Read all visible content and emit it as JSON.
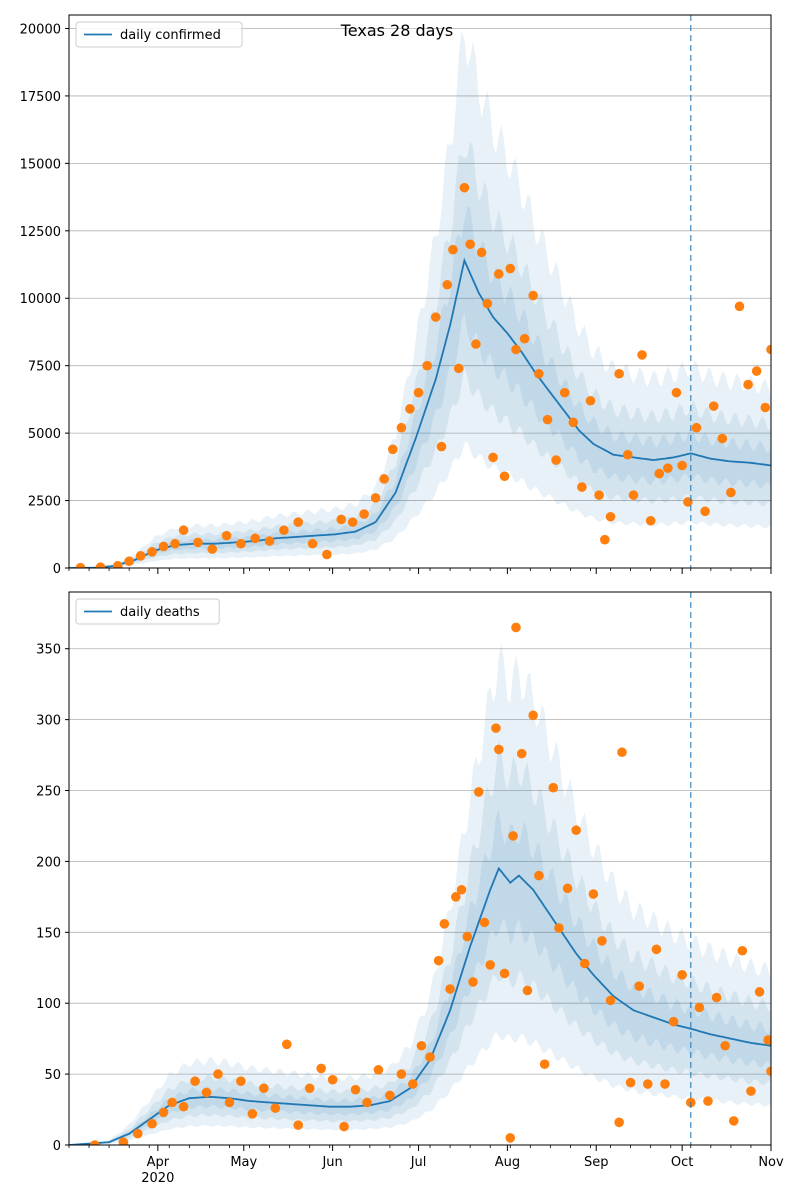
{
  "figure_title": "Texas 28 days",
  "colors": {
    "model_line": "#1f77b4",
    "observed_points": "#ff7f0e",
    "band": "#1f77b4",
    "grid": "#b0b0b0",
    "vline": "#1f77b4"
  },
  "x_axis": {
    "range": [
      "2020-03-01",
      "2020-11-01"
    ],
    "month_labels": [
      {
        "date": "2020-04-01",
        "label": "Apr",
        "sub": "2020"
      },
      {
        "date": "2020-05-01",
        "label": "May",
        "sub": ""
      },
      {
        "date": "2020-06-01",
        "label": "Jun",
        "sub": ""
      },
      {
        "date": "2020-07-01",
        "label": "Jul",
        "sub": ""
      },
      {
        "date": "2020-08-01",
        "label": "Aug",
        "sub": ""
      },
      {
        "date": "2020-09-01",
        "label": "Sep",
        "sub": ""
      },
      {
        "date": "2020-10-01",
        "label": "Oct",
        "sub": ""
      },
      {
        "date": "2020-11-01",
        "label": "Nov",
        "sub": ""
      }
    ],
    "forecast_start": "2020-10-04"
  },
  "chart_data": [
    {
      "type": "line",
      "title": "Texas 28 days",
      "legend": {
        "label": "daily confirmed",
        "position": "top-left"
      },
      "grid": "horizontal",
      "ylim": [
        0,
        20500
      ],
      "yticks": [
        0,
        2500,
        5000,
        7500,
        10000,
        12500,
        15000,
        17500,
        20000
      ],
      "model_median": [
        [
          "2020-03-01",
          0
        ],
        [
          "2020-03-10",
          10
        ],
        [
          "2020-03-17",
          80
        ],
        [
          "2020-03-24",
          300
        ],
        [
          "2020-03-31",
          650
        ],
        [
          "2020-04-07",
          850
        ],
        [
          "2020-04-14",
          900
        ],
        [
          "2020-04-21",
          900
        ],
        [
          "2020-04-28",
          950
        ],
        [
          "2020-05-05",
          1000
        ],
        [
          "2020-05-12",
          1100
        ],
        [
          "2020-05-19",
          1150
        ],
        [
          "2020-05-26",
          1200
        ],
        [
          "2020-06-02",
          1250
        ],
        [
          "2020-06-09",
          1350
        ],
        [
          "2020-06-16",
          1700
        ],
        [
          "2020-06-23",
          2800
        ],
        [
          "2020-06-30",
          4800
        ],
        [
          "2020-07-07",
          7000
        ],
        [
          "2020-07-12",
          9000
        ],
        [
          "2020-07-17",
          11400
        ],
        [
          "2020-07-22",
          10200
        ],
        [
          "2020-07-27",
          9300
        ],
        [
          "2020-08-01",
          8700
        ],
        [
          "2020-08-06",
          8000
        ],
        [
          "2020-08-11",
          7200
        ],
        [
          "2020-08-16",
          6500
        ],
        [
          "2020-08-21",
          5800
        ],
        [
          "2020-08-26",
          5100
        ],
        [
          "2020-08-31",
          4600
        ],
        [
          "2020-09-07",
          4200
        ],
        [
          "2020-09-14",
          4100
        ],
        [
          "2020-09-21",
          4000
        ],
        [
          "2020-09-28",
          4100
        ],
        [
          "2020-10-04",
          4250
        ],
        [
          "2020-10-11",
          4050
        ],
        [
          "2020-10-18",
          3950
        ],
        [
          "2020-10-25",
          3900
        ],
        [
          "2020-11-01",
          3800
        ]
      ],
      "observed": [
        [
          "2020-03-05",
          10
        ],
        [
          "2020-03-12",
          30
        ],
        [
          "2020-03-18",
          80
        ],
        [
          "2020-03-22",
          250
        ],
        [
          "2020-03-26",
          450
        ],
        [
          "2020-03-30",
          600
        ],
        [
          "2020-04-03",
          800
        ],
        [
          "2020-04-07",
          900
        ],
        [
          "2020-04-10",
          1400
        ],
        [
          "2020-04-15",
          950
        ],
        [
          "2020-04-20",
          700
        ],
        [
          "2020-04-25",
          1200
        ],
        [
          "2020-04-30",
          900
        ],
        [
          "2020-05-05",
          1100
        ],
        [
          "2020-05-10",
          1000
        ],
        [
          "2020-05-15",
          1400
        ],
        [
          "2020-05-20",
          1700
        ],
        [
          "2020-05-25",
          900
        ],
        [
          "2020-05-30",
          500
        ],
        [
          "2020-06-04",
          1800
        ],
        [
          "2020-06-08",
          1700
        ],
        [
          "2020-06-12",
          2000
        ],
        [
          "2020-06-16",
          2600
        ],
        [
          "2020-06-19",
          3300
        ],
        [
          "2020-06-22",
          4400
        ],
        [
          "2020-06-25",
          5200
        ],
        [
          "2020-06-28",
          5900
        ],
        [
          "2020-07-01",
          6500
        ],
        [
          "2020-07-04",
          7500
        ],
        [
          "2020-07-07",
          9300
        ],
        [
          "2020-07-09",
          4500
        ],
        [
          "2020-07-11",
          10500
        ],
        [
          "2020-07-13",
          11800
        ],
        [
          "2020-07-15",
          7400
        ],
        [
          "2020-07-17",
          14100
        ],
        [
          "2020-07-19",
          12000
        ],
        [
          "2020-07-21",
          8300
        ],
        [
          "2020-07-23",
          11700
        ],
        [
          "2020-07-25",
          9800
        ],
        [
          "2020-07-27",
          4100
        ],
        [
          "2020-07-29",
          10900
        ],
        [
          "2020-07-31",
          3400
        ],
        [
          "2020-08-02",
          11100
        ],
        [
          "2020-08-04",
          8100
        ],
        [
          "2020-08-07",
          8500
        ],
        [
          "2020-08-10",
          10100
        ],
        [
          "2020-08-12",
          7200
        ],
        [
          "2020-08-15",
          5500
        ],
        [
          "2020-08-18",
          4000
        ],
        [
          "2020-08-21",
          6500
        ],
        [
          "2020-08-24",
          5400
        ],
        [
          "2020-08-27",
          3000
        ],
        [
          "2020-08-30",
          6200
        ],
        [
          "2020-09-02",
          2700
        ],
        [
          "2020-09-04",
          1050
        ],
        [
          "2020-09-06",
          1900
        ],
        [
          "2020-09-09",
          7200
        ],
        [
          "2020-09-12",
          4200
        ],
        [
          "2020-09-14",
          2700
        ],
        [
          "2020-09-17",
          7900
        ],
        [
          "2020-09-20",
          1750
        ],
        [
          "2020-09-23",
          3500
        ],
        [
          "2020-09-26",
          3700
        ],
        [
          "2020-09-29",
          6500
        ],
        [
          "2020-10-01",
          3800
        ],
        [
          "2020-10-03",
          2450
        ],
        [
          "2020-10-06",
          5200
        ],
        [
          "2020-10-09",
          2100
        ],
        [
          "2020-10-12",
          6000
        ],
        [
          "2020-10-15",
          4800
        ],
        [
          "2020-10-18",
          2800
        ],
        [
          "2020-10-21",
          9700
        ],
        [
          "2020-10-24",
          6800
        ],
        [
          "2020-10-27",
          7300
        ],
        [
          "2020-10-30",
          5950
        ],
        [
          "2020-11-01",
          8100
        ]
      ]
    },
    {
      "type": "line",
      "legend": {
        "label": "daily deaths",
        "position": "top-left"
      },
      "grid": "horizontal",
      "ylim": [
        0,
        390
      ],
      "yticks": [
        0,
        50,
        100,
        150,
        200,
        250,
        300,
        350
      ],
      "model_median": [
        [
          "2020-03-01",
          0
        ],
        [
          "2020-03-15",
          2
        ],
        [
          "2020-03-22",
          8
        ],
        [
          "2020-03-29",
          18
        ],
        [
          "2020-04-05",
          28
        ],
        [
          "2020-04-12",
          33
        ],
        [
          "2020-04-19",
          34
        ],
        [
          "2020-04-26",
          33
        ],
        [
          "2020-05-03",
          31
        ],
        [
          "2020-05-10",
          30
        ],
        [
          "2020-05-17",
          29
        ],
        [
          "2020-05-24",
          28
        ],
        [
          "2020-05-31",
          27
        ],
        [
          "2020-06-07",
          27
        ],
        [
          "2020-06-14",
          28
        ],
        [
          "2020-06-21",
          31
        ],
        [
          "2020-06-28",
          40
        ],
        [
          "2020-07-05",
          60
        ],
        [
          "2020-07-12",
          95
        ],
        [
          "2020-07-19",
          140
        ],
        [
          "2020-07-26",
          180
        ],
        [
          "2020-07-29",
          195
        ],
        [
          "2020-08-02",
          185
        ],
        [
          "2020-08-05",
          190
        ],
        [
          "2020-08-10",
          180
        ],
        [
          "2020-08-15",
          165
        ],
        [
          "2020-08-20",
          150
        ],
        [
          "2020-08-25",
          135
        ],
        [
          "2020-08-31",
          120
        ],
        [
          "2020-09-07",
          105
        ],
        [
          "2020-09-14",
          95
        ],
        [
          "2020-09-21",
          90
        ],
        [
          "2020-09-28",
          85
        ],
        [
          "2020-10-04",
          82
        ],
        [
          "2020-10-11",
          78
        ],
        [
          "2020-10-18",
          75
        ],
        [
          "2020-10-25",
          72
        ],
        [
          "2020-11-01",
          70
        ]
      ],
      "observed": [
        [
          "2020-03-10",
          0
        ],
        [
          "2020-03-20",
          2
        ],
        [
          "2020-03-25",
          8
        ],
        [
          "2020-03-30",
          15
        ],
        [
          "2020-04-03",
          23
        ],
        [
          "2020-04-06",
          30
        ],
        [
          "2020-04-10",
          27
        ],
        [
          "2020-04-14",
          45
        ],
        [
          "2020-04-18",
          37
        ],
        [
          "2020-04-22",
          50
        ],
        [
          "2020-04-26",
          30
        ],
        [
          "2020-04-30",
          45
        ],
        [
          "2020-05-04",
          22
        ],
        [
          "2020-05-08",
          40
        ],
        [
          "2020-05-12",
          26
        ],
        [
          "2020-05-16",
          71
        ],
        [
          "2020-05-20",
          14
        ],
        [
          "2020-05-24",
          40
        ],
        [
          "2020-05-28",
          54
        ],
        [
          "2020-06-01",
          46
        ],
        [
          "2020-06-05",
          13
        ],
        [
          "2020-06-09",
          39
        ],
        [
          "2020-06-13",
          30
        ],
        [
          "2020-06-17",
          53
        ],
        [
          "2020-06-21",
          35
        ],
        [
          "2020-06-25",
          50
        ],
        [
          "2020-06-29",
          43
        ],
        [
          "2020-07-02",
          70
        ],
        [
          "2020-07-05",
          62
        ],
        [
          "2020-07-08",
          130
        ],
        [
          "2020-07-10",
          156
        ],
        [
          "2020-07-12",
          110
        ],
        [
          "2020-07-14",
          175
        ],
        [
          "2020-07-16",
          180
        ],
        [
          "2020-07-18",
          147
        ],
        [
          "2020-07-20",
          115
        ],
        [
          "2020-07-22",
          249
        ],
        [
          "2020-07-24",
          157
        ],
        [
          "2020-07-26",
          127
        ],
        [
          "2020-07-28",
          294
        ],
        [
          "2020-07-29",
          279
        ],
        [
          "2020-07-31",
          121
        ],
        [
          "2020-08-02",
          5
        ],
        [
          "2020-08-03",
          218
        ],
        [
          "2020-08-04",
          365
        ],
        [
          "2020-08-06",
          276
        ],
        [
          "2020-08-08",
          109
        ],
        [
          "2020-08-10",
          303
        ],
        [
          "2020-08-12",
          190
        ],
        [
          "2020-08-14",
          57
        ],
        [
          "2020-08-17",
          252
        ],
        [
          "2020-08-19",
          153
        ],
        [
          "2020-08-22",
          181
        ],
        [
          "2020-08-25",
          222
        ],
        [
          "2020-08-28",
          128
        ],
        [
          "2020-08-31",
          177
        ],
        [
          "2020-09-03",
          144
        ],
        [
          "2020-09-06",
          102
        ],
        [
          "2020-09-09",
          16
        ],
        [
          "2020-09-10",
          277
        ],
        [
          "2020-09-13",
          44
        ],
        [
          "2020-09-16",
          112
        ],
        [
          "2020-09-19",
          43
        ],
        [
          "2020-09-22",
          138
        ],
        [
          "2020-09-25",
          43
        ],
        [
          "2020-09-28",
          87
        ],
        [
          "2020-10-01",
          120
        ],
        [
          "2020-10-04",
          30
        ],
        [
          "2020-10-07",
          97
        ],
        [
          "2020-10-10",
          31
        ],
        [
          "2020-10-13",
          104
        ],
        [
          "2020-10-16",
          70
        ],
        [
          "2020-10-19",
          17
        ],
        [
          "2020-10-22",
          137
        ],
        [
          "2020-10-25",
          38
        ],
        [
          "2020-10-28",
          108
        ],
        [
          "2020-10-31",
          74
        ],
        [
          "2020-11-01",
          52
        ]
      ]
    }
  ]
}
